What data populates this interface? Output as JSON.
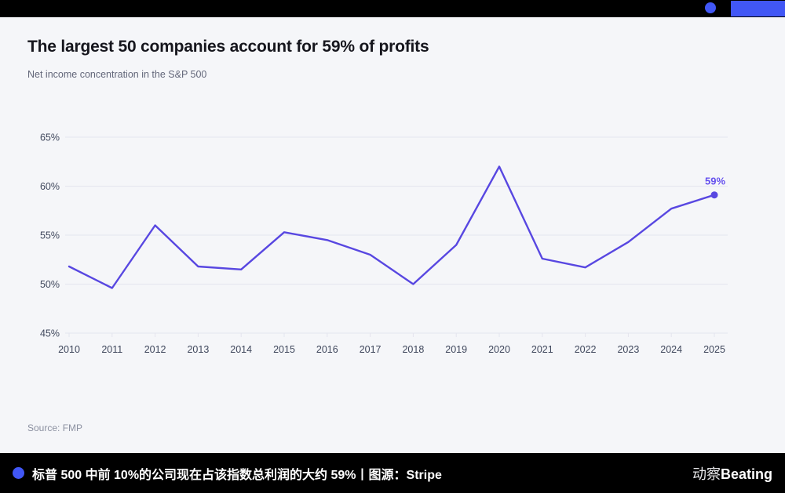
{
  "card": {
    "title": "The largest 50 companies account for 59% of profits",
    "subtitle": "Net income concentration in the S&P 500",
    "source": "Source: FMP"
  },
  "footer": {
    "caption": "标普 500 中前 10%的公司现在占该指数总利润的大约 59%丨图源：Stripe",
    "brand_cn": "动察",
    "brand_en": "Beating"
  },
  "colors": {
    "line": "#5847e1",
    "end_label": "#6550ee",
    "blue": "#4157f5",
    "panel": "#f5f6f9",
    "frame": "#000000",
    "grid": "#e4e5ee",
    "tick": "#3f475c",
    "title": "#16161d"
  },
  "chart_data": {
    "type": "line",
    "title": "The largest 50 companies account for 59% of profits",
    "subtitle": "Net income concentration in the S&P 500",
    "x": [
      2010,
      2011,
      2012,
      2013,
      2014,
      2015,
      2016,
      2017,
      2018,
      2019,
      2020,
      2021,
      2022,
      2023,
      2024,
      2025
    ],
    "values": [
      51.8,
      49.6,
      56.0,
      51.8,
      51.5,
      55.3,
      54.5,
      53.0,
      50.0,
      54.0,
      62.0,
      52.6,
      51.7,
      54.3,
      57.7,
      59.1
    ],
    "xlabel": "",
    "ylabel": "",
    "ylim": [
      45,
      65
    ],
    "yticks": [
      45,
      50,
      55,
      60,
      65
    ],
    "ytick_suffix": "%",
    "grid": "horizontal",
    "legend": "none",
    "end_label": "59%"
  }
}
